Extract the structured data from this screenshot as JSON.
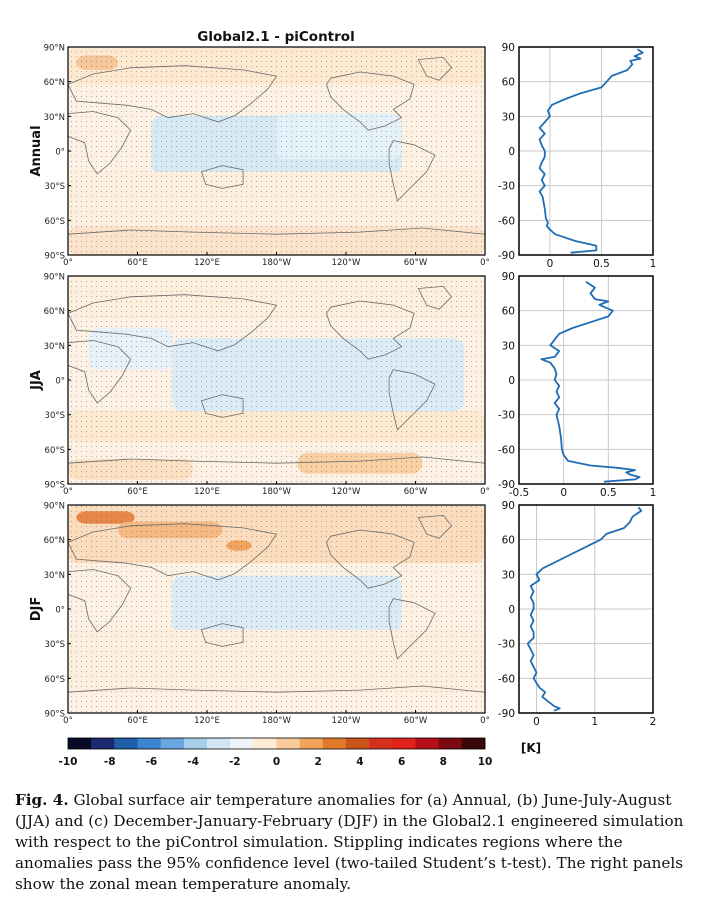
{
  "figure": {
    "title": "Global2.1 - piControl",
    "map_lat_ticks": [
      "90°N",
      "60°N",
      "30°N",
      "0°",
      "30°S",
      "60°S",
      "90°S"
    ],
    "map_lon_ticks": [
      "0°",
      "60°E",
      "120°E",
      "180°W",
      "120°W",
      "60°W",
      "0°"
    ],
    "colorbar": {
      "ticks": [
        "-10",
        "-8",
        "-6",
        "-4",
        "-2",
        "0",
        "2",
        "4",
        "6",
        "8",
        "10"
      ],
      "colors": [
        "#080a28",
        "#1b2a6e",
        "#1f5fa8",
        "#3b84d0",
        "#6aa6e0",
        "#a6cde9",
        "#d2e5f2",
        "#eef5fa",
        "#fdebd3",
        "#f9cb9c",
        "#f0a35c",
        "#e07a28",
        "#c9541c",
        "#d62f1e",
        "#e0211c",
        "#b40f16",
        "#7a0a10",
        "#3a0808"
      ],
      "unit": "[K]"
    }
  },
  "panels": [
    {
      "id": "annual",
      "label": "Annual"
    },
    {
      "id": "jja",
      "label": "JJA"
    },
    {
      "id": "djf",
      "label": "DJF"
    }
  ],
  "chart_data": [
    {
      "type": "line",
      "panel": "Annual",
      "xlabel": "",
      "ylabel": "",
      "xlim": [
        -0.3,
        1.0
      ],
      "ylim": [
        -90,
        90
      ],
      "xticks": [
        "0",
        "0.5",
        "1"
      ],
      "yticks": [
        "90",
        "60",
        "30",
        "0",
        "-30",
        "-60",
        "-90"
      ],
      "grid": true,
      "line_color": "#1f6db5",
      "lat": [
        -88,
        -86,
        -84,
        -82,
        -80,
        -78,
        -75,
        -72,
        -68,
        -65,
        -62,
        -58,
        -50,
        -40,
        -35,
        -30,
        -25,
        -20,
        -15,
        -10,
        -5,
        0,
        5,
        10,
        15,
        20,
        25,
        30,
        35,
        40,
        45,
        50,
        55,
        60,
        65,
        70,
        75,
        78,
        80,
        82,
        85,
        88
      ],
      "anomaly": [
        0.2,
        0.45,
        0.45,
        0.45,
        0.35,
        0.25,
        0.15,
        0.05,
        0.0,
        -0.03,
        -0.02,
        -0.04,
        -0.05,
        -0.07,
        -0.1,
        -0.05,
        -0.08,
        -0.05,
        -0.1,
        -0.08,
        -0.05,
        -0.05,
        -0.08,
        -0.1,
        -0.05,
        -0.1,
        -0.05,
        0.0,
        -0.02,
        0.02,
        0.15,
        0.3,
        0.5,
        0.55,
        0.6,
        0.75,
        0.8,
        0.78,
        0.88,
        0.82,
        0.9,
        0.85
      ]
    },
    {
      "type": "line",
      "panel": "JJA",
      "xlabel": "",
      "ylabel": "",
      "xlim": [
        -0.5,
        1.0
      ],
      "ylim": [
        -90,
        90
      ],
      "xticks": [
        "-0.5",
        "0",
        "0.5",
        "1"
      ],
      "yticks": [
        "90",
        "60",
        "30",
        "0",
        "-30",
        "-60",
        "-90"
      ],
      "grid": true,
      "line_color": "#1f6db5",
      "lat": [
        -88,
        -86,
        -84,
        -82,
        -80,
        -78,
        -76,
        -74,
        -70,
        -65,
        -60,
        -50,
        -40,
        -30,
        -25,
        -20,
        -15,
        -10,
        -5,
        0,
        5,
        10,
        15,
        18,
        20,
        25,
        30,
        35,
        40,
        45,
        50,
        55,
        60,
        65,
        68,
        70,
        75,
        80,
        85
      ],
      "anomaly": [
        0.45,
        0.8,
        0.85,
        0.75,
        0.7,
        0.8,
        0.6,
        0.3,
        0.05,
        0.0,
        -0.02,
        -0.03,
        -0.05,
        -0.08,
        -0.05,
        -0.1,
        -0.05,
        -0.08,
        -0.05,
        -0.1,
        -0.08,
        -0.1,
        -0.15,
        -0.25,
        -0.1,
        -0.05,
        -0.15,
        -0.1,
        -0.05,
        0.1,
        0.3,
        0.5,
        0.55,
        0.4,
        0.5,
        0.35,
        0.3,
        0.35,
        0.25
      ]
    },
    {
      "type": "line",
      "panel": "DJF",
      "xlabel": "",
      "ylabel": "",
      "xlim": [
        -0.3,
        2.0
      ],
      "ylim": [
        -90,
        90
      ],
      "xticks": [
        "0",
        "1",
        "2"
      ],
      "yticks": [
        "90",
        "60",
        "30",
        "0",
        "-30",
        "-60",
        "-90"
      ],
      "grid": true,
      "line_color": "#1f6db5",
      "lat": [
        -88,
        -86,
        -84,
        -80,
        -76,
        -72,
        -68,
        -64,
        -60,
        -55,
        -50,
        -45,
        -40,
        -35,
        -30,
        -25,
        -20,
        -15,
        -10,
        -5,
        0,
        5,
        10,
        15,
        20,
        25,
        30,
        35,
        40,
        45,
        50,
        55,
        60,
        65,
        70,
        75,
        80,
        85,
        88
      ],
      "anomaly": [
        0.3,
        0.4,
        0.3,
        0.2,
        0.1,
        0.15,
        0.05,
        0.0,
        -0.05,
        0.0,
        -0.05,
        -0.1,
        -0.05,
        -0.1,
        -0.15,
        -0.05,
        -0.05,
        -0.1,
        -0.05,
        -0.1,
        -0.05,
        -0.05,
        -0.1,
        -0.05,
        -0.1,
        0.05,
        0.0,
        0.1,
        0.3,
        0.5,
        0.7,
        0.9,
        1.1,
        1.2,
        1.5,
        1.6,
        1.65,
        1.8,
        1.75
      ]
    }
  ],
  "caption": {
    "label": "Fig. 4.",
    "text": "Global surface air temperature anomalies for (a) Annual, (b) June-July-August (JJA) and (c) December-January-February (DJF) in the Global2.1 engineered simulation with respect to the piControl simulation. Stippling indicates regions where the anomalies pass the 95% confidence level (two-tailed Student’s t-test). The right panels show the zonal mean temperature anomaly."
  }
}
